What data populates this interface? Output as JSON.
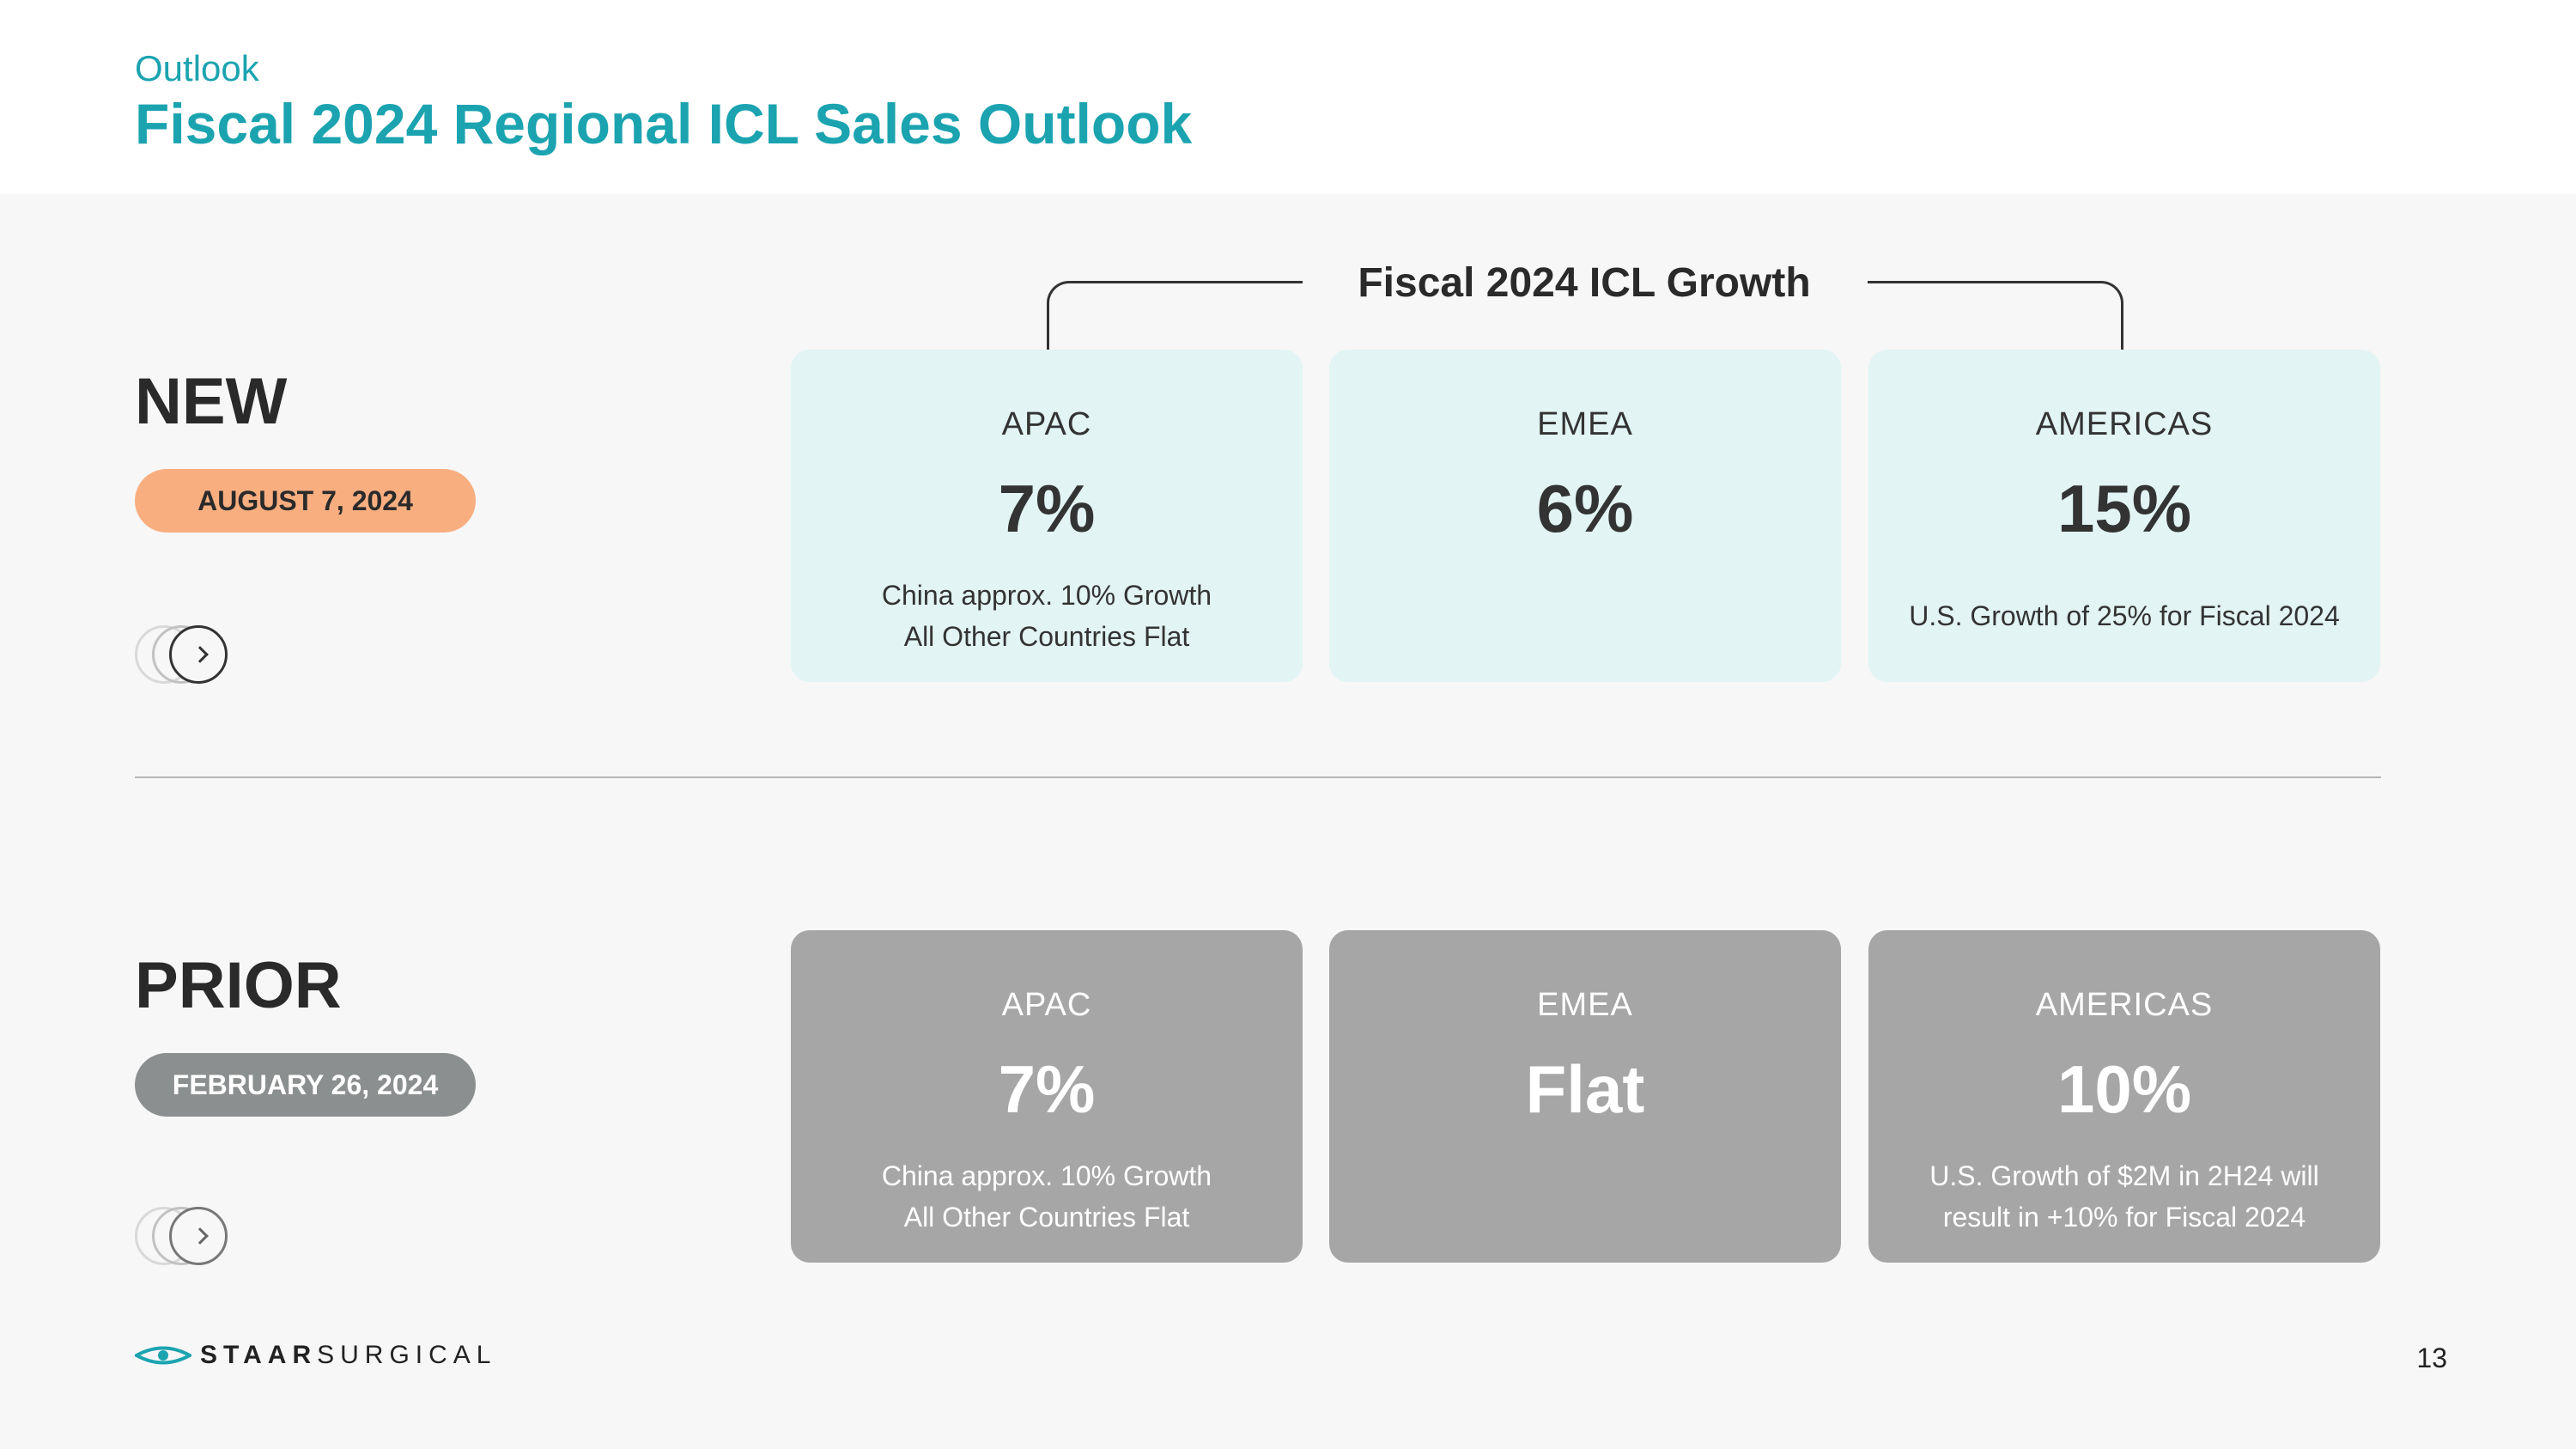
{
  "header": {
    "eyebrow": "Outlook",
    "title": "Fiscal 2024 Regional ICL Sales Outlook"
  },
  "growth_title": "Fiscal 2024 ICL Growth",
  "new": {
    "label": "NEW",
    "date": "AUGUST 7, 2024",
    "cards": [
      {
        "region": "APAC",
        "value": "7%",
        "note_line1": "China approx. 10% Growth",
        "note_line2": "All Other Countries Flat"
      },
      {
        "region": "EMEA",
        "value": "6%"
      },
      {
        "region": "AMERICAS",
        "value": "15%",
        "note_line1": "U.S. Growth of 25% for Fiscal 2024"
      }
    ]
  },
  "prior": {
    "label": "PRIOR",
    "date": "FEBRUARY 26, 2024",
    "cards": [
      {
        "region": "APAC",
        "value": "7%",
        "note_line1": "China approx. 10% Growth",
        "note_line2": "All Other Countries Flat"
      },
      {
        "region": "EMEA",
        "value": "Flat"
      },
      {
        "region": "AMERICAS",
        "value": "10%",
        "note_line1": "U.S. Growth of $2M in 2H24 will",
        "note_line2": "result in +10% for Fiscal 2024"
      }
    ]
  },
  "footer": {
    "logo_bold": "STAAR",
    "logo_light": "SURGICAL",
    "page_number": "13"
  },
  "colors": {
    "accent": "#1ba3b0",
    "new_pill": "#f9ae80",
    "prior_pill": "#8c8f8f",
    "new_card": "#e2f4f4",
    "prior_card": "#a6a6a6"
  }
}
